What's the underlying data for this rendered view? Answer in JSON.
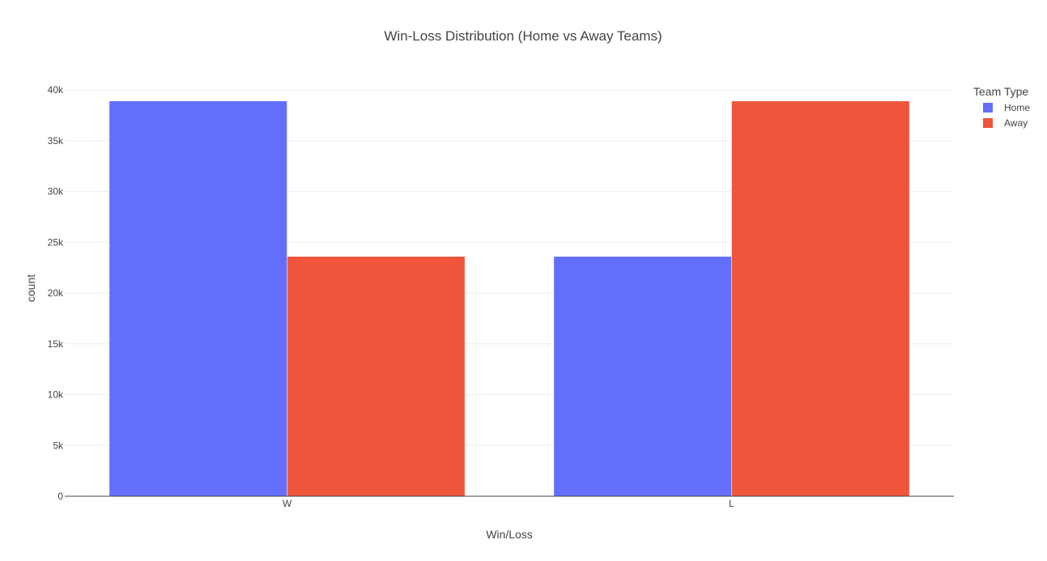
{
  "chart_data": {
    "type": "bar",
    "title": "Win-Loss Distribution (Home vs Away Teams)",
    "xlabel": "Win/Loss",
    "ylabel": "count",
    "categories": [
      "W",
      "L"
    ],
    "series": [
      {
        "name": "Home",
        "color": "#636efa",
        "values": [
          38900,
          23600
        ]
      },
      {
        "name": "Away",
        "color": "#ef553b",
        "values": [
          23600,
          38900
        ]
      }
    ],
    "ylim": [
      0,
      40000
    ],
    "yticks": [
      0,
      5000,
      10000,
      15000,
      20000,
      25000,
      30000,
      35000,
      40000
    ],
    "ytick_labels": [
      "0",
      "5k",
      "10k",
      "15k",
      "20k",
      "25k",
      "30k",
      "35k",
      "40k"
    ],
    "grid": true,
    "legend": {
      "title": "Team Type",
      "position": "top-right"
    }
  }
}
